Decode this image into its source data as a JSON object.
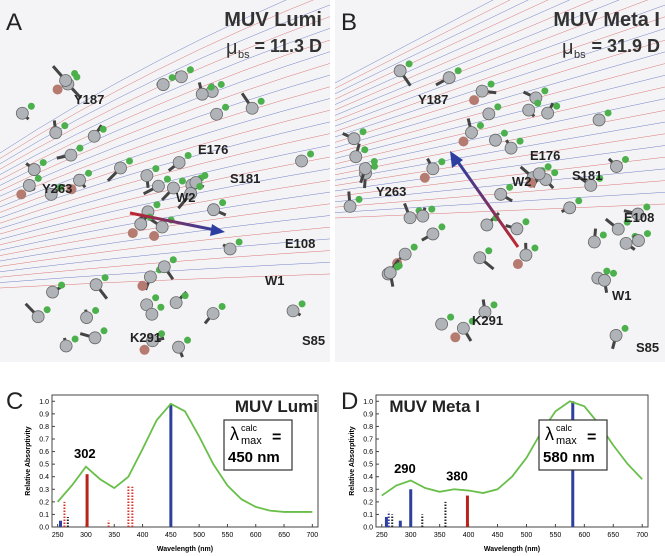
{
  "panels": [
    {
      "letter": "A",
      "title": "MUV Lumi",
      "mu": "μ",
      "mu_sub": "bs",
      "dipole": "= 11.3 D",
      "labels": [
        "Y187",
        "E176",
        "S181",
        "W2",
        "Y263",
        "E108",
        "W1",
        "K291",
        "S85"
      ]
    },
    {
      "letter": "B",
      "title": "MUV Meta I",
      "mu": "μ",
      "mu_sub": "bs",
      "dipole": "= 31.9 D",
      "labels": [
        "Y187",
        "E176",
        "W2",
        "S181",
        "Y263",
        "E108",
        "W1",
        "K291",
        "S85"
      ]
    }
  ],
  "chart_data": [
    {
      "type": "line",
      "letter": "C",
      "title": "MUV Lumi",
      "xlabel": "Wavelength (nm)",
      "ylabel": "Relative Absorptivity",
      "x": [
        250,
        275,
        300,
        325,
        350,
        375,
        400,
        425,
        450,
        475,
        500,
        525,
        550,
        575,
        600,
        625,
        650,
        675,
        700
      ],
      "series": [
        {
          "color": "#6abf4b",
          "values": [
            0.2,
            0.33,
            0.48,
            0.38,
            0.31,
            0.4,
            0.62,
            0.85,
            0.98,
            0.92,
            0.72,
            0.5,
            0.33,
            0.22,
            0.16,
            0.13,
            0.12,
            0.12,
            0.12
          ]
        }
      ],
      "sticks": {
        "x": [
          255,
          262,
          268,
          302,
          340,
          375,
          382,
          450
        ],
        "values": [
          0.05,
          0.2,
          0.08,
          0.42,
          0.05,
          0.33,
          0.32,
          0.98
        ],
        "colors": [
          "#2e3f9e",
          "#d9342b",
          "#222222",
          "#b8231b",
          "#d9342b",
          "#d9342b",
          "#d9342b",
          "#2e3f9e"
        ],
        "dashed": [
          false,
          true,
          true,
          false,
          true,
          true,
          true,
          false
        ]
      },
      "peak_label": "302",
      "lambda": {
        "symbol": "λ",
        "sup": "calc",
        "sub": "max",
        "eq": "=",
        "value": "450 nm"
      },
      "xlim": [
        240,
        710
      ],
      "xticks": [
        250,
        300,
        350,
        400,
        450,
        500,
        550,
        600,
        650,
        700
      ],
      "ylim": [
        0,
        1.05
      ],
      "yticks": [
        {
          "value": 0,
          "label": "0.0"
        },
        0.1,
        0.2,
        0.3,
        0.4,
        0.5,
        0.6,
        0.7,
        0.8,
        0.9,
        {
          "value": 1,
          "label": "1.0"
        }
      ]
    },
    {
      "type": "line",
      "letter": "D",
      "title": "MUV Meta I",
      "xlabel": "Wavelength (nm)",
      "ylabel": "Relative Absorptivity",
      "x": [
        250,
        275,
        300,
        325,
        350,
        375,
        400,
        425,
        450,
        475,
        500,
        525,
        550,
        575,
        600,
        625,
        650,
        675,
        700
      ],
      "series": [
        {
          "color": "#6abf4b",
          "values": [
            0.25,
            0.33,
            0.37,
            0.31,
            0.28,
            0.3,
            0.29,
            0.27,
            0.3,
            0.4,
            0.55,
            0.75,
            0.92,
            1.0,
            0.96,
            0.82,
            0.65,
            0.5,
            0.38
          ]
        }
      ],
      "sticks": {
        "x": [
          258,
          262,
          268,
          282,
          300,
          320,
          360,
          398,
          580
        ],
        "values": [
          0.08,
          0.12,
          0.1,
          0.05,
          0.3,
          0.1,
          0.2,
          0.25,
          1.0
        ],
        "colors": [
          "#2e3f9e",
          "#2e3f9e",
          "#222222",
          "#2e3f9e",
          "#2e3f9e",
          "#222222",
          "#222222",
          "#b8231b",
          "#2e3f9e"
        ],
        "dashed": [
          false,
          true,
          true,
          false,
          false,
          true,
          true,
          false,
          false
        ]
      },
      "peak_labels": [
        "290",
        "380"
      ],
      "lambda": {
        "symbol": "λ",
        "sup": "calc",
        "sub": "max",
        "eq": "=",
        "value": "580 nm"
      },
      "xlim": [
        240,
        710
      ],
      "xticks": [
        250,
        300,
        350,
        400,
        450,
        500,
        550,
        600,
        650,
        700
      ],
      "ylim": [
        0,
        1.05
      ],
      "yticks": [
        {
          "value": 0,
          "label": "0.0"
        },
        0.1,
        0.2,
        0.3,
        0.4,
        0.5,
        0.6,
        0.7,
        0.8,
        0.9,
        {
          "value": 1,
          "label": "1.0"
        }
      ]
    }
  ]
}
